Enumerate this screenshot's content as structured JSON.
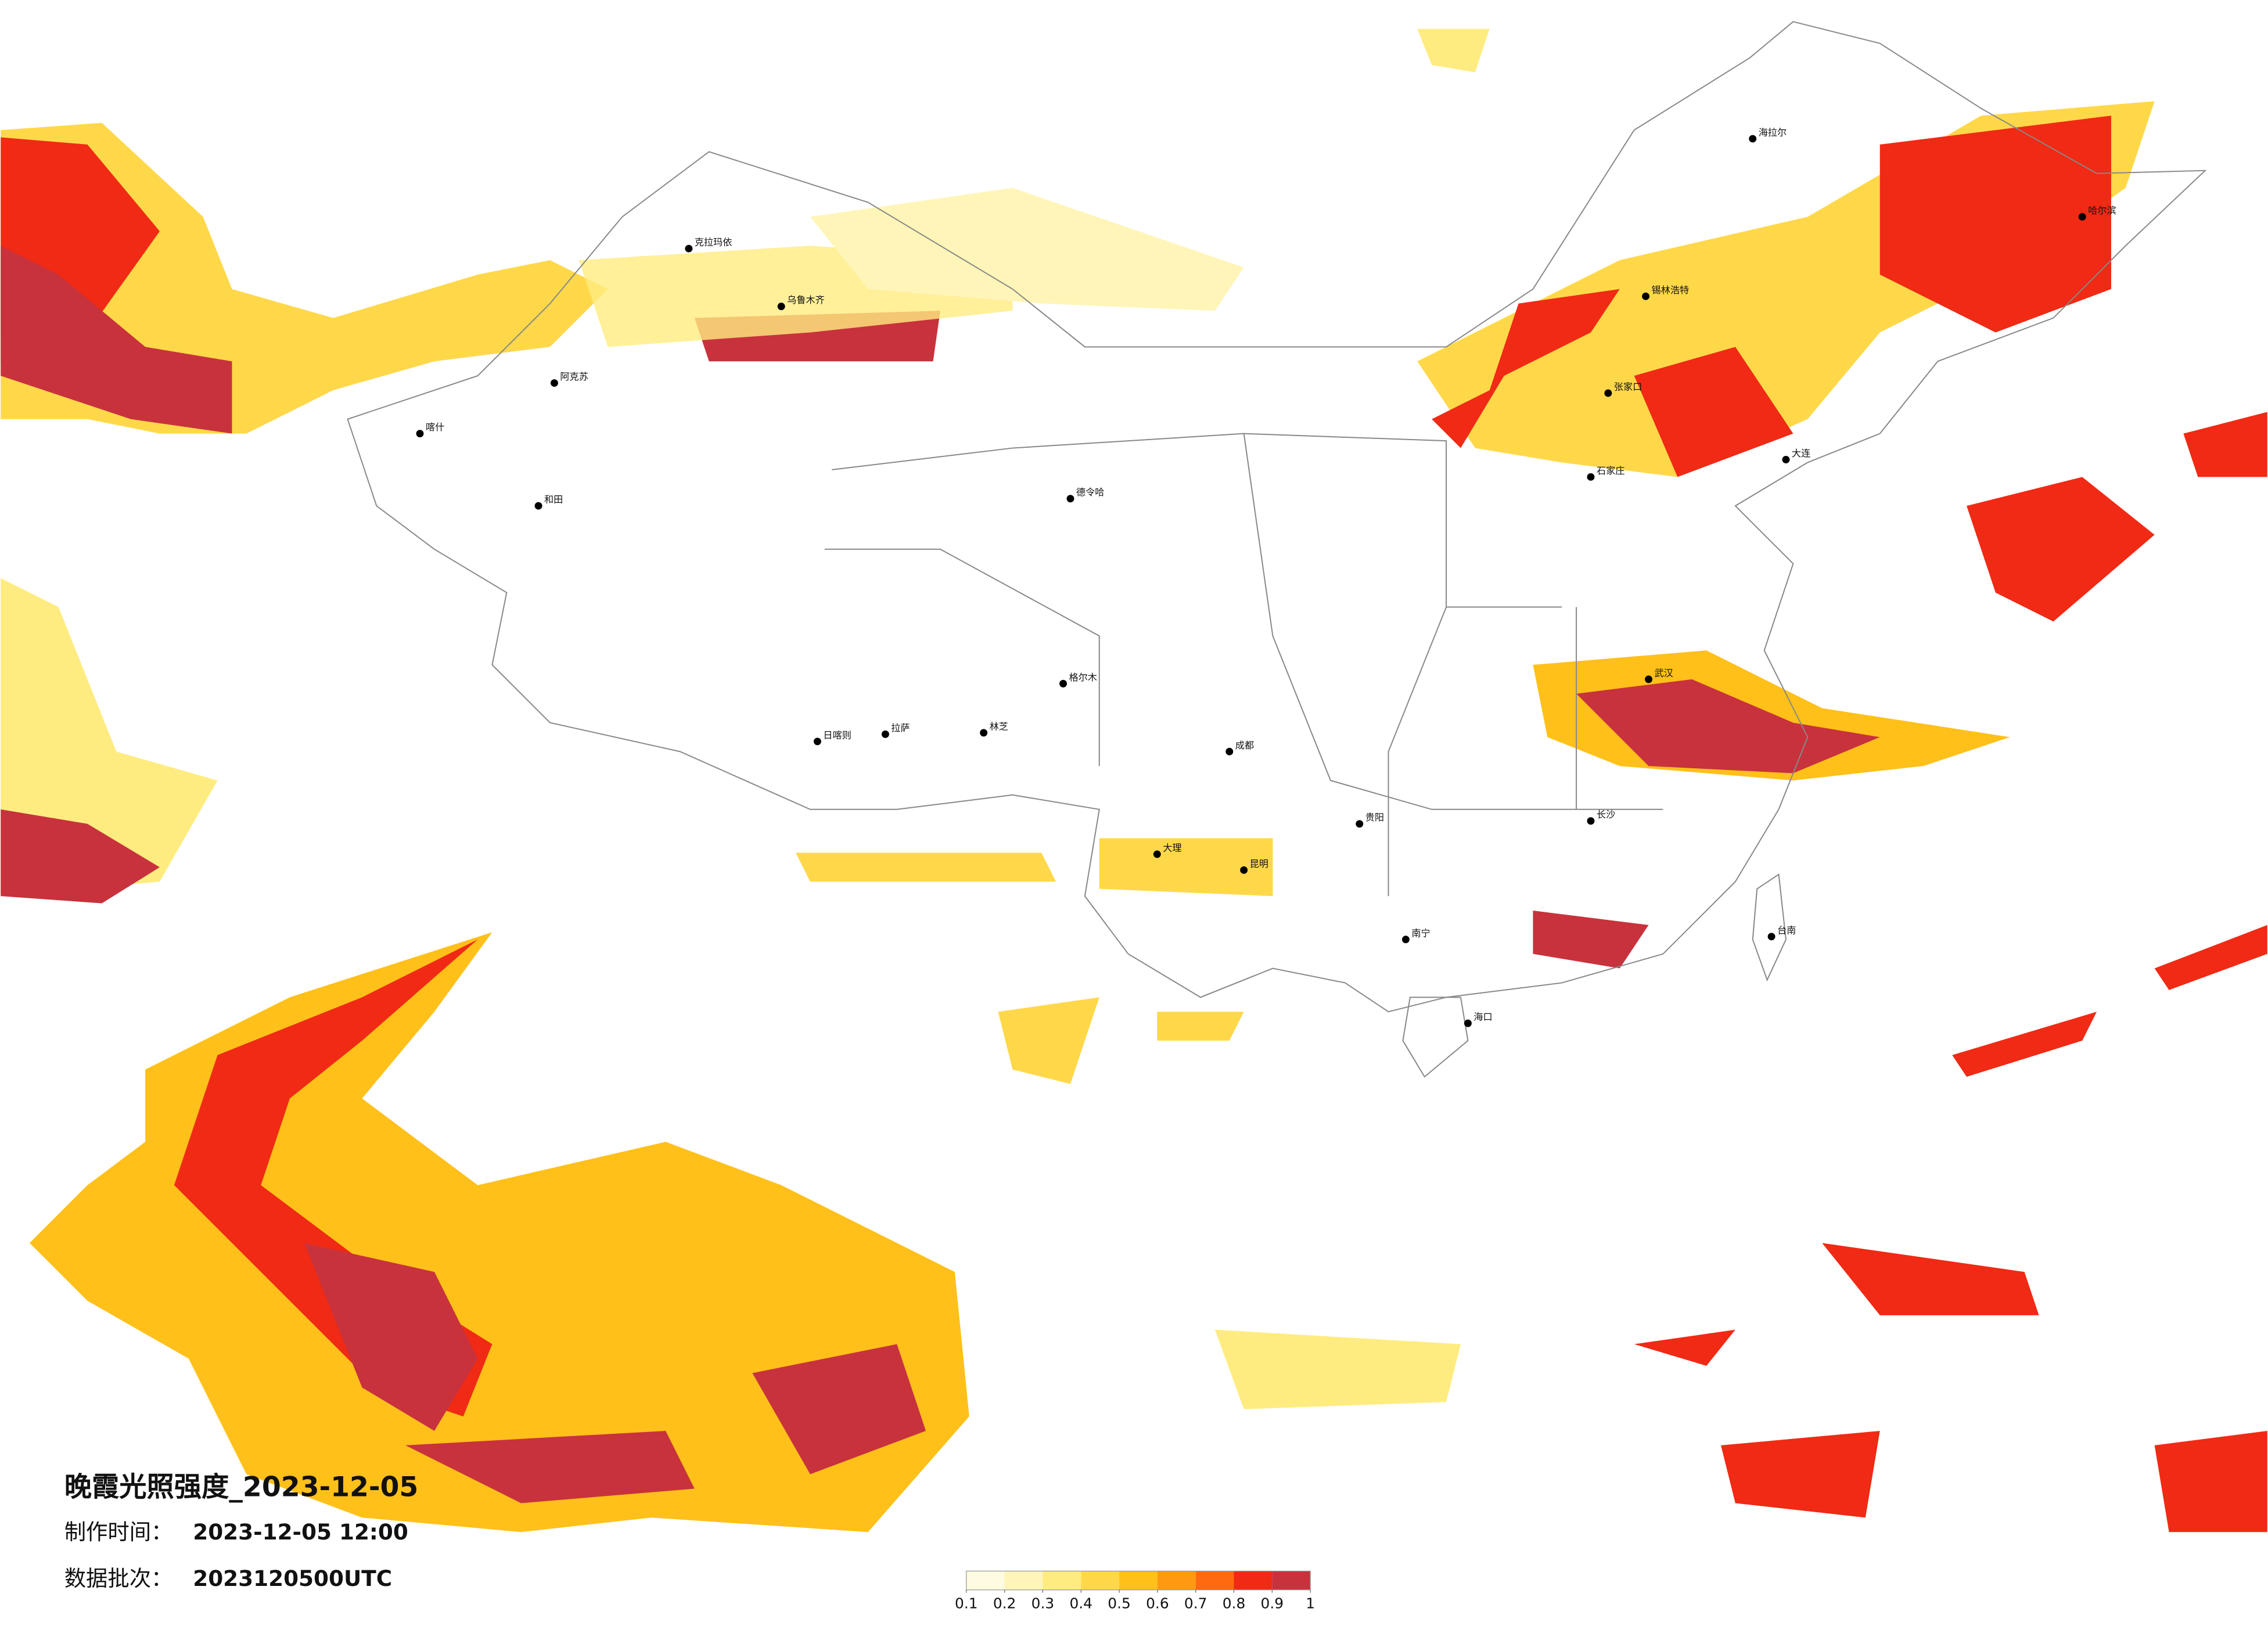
{
  "map": {
    "title": "晚霞光照强度_2023-12-05",
    "info": [
      {
        "label": "制作时间：",
        "value": "2023-12-05 12:00"
      },
      {
        "label": "数据批次：",
        "value": "2023120500UTC"
      }
    ],
    "colorbar": {
      "ticks": [
        0.1,
        0.2,
        0.3,
        0.4,
        0.5,
        0.6,
        0.7,
        0.8,
        0.9,
        1
      ],
      "colors": [
        "#fffbe0",
        "#fff5b8",
        "#ffec80",
        "#ffd84a",
        "#ffc01a",
        "#ff9a10",
        "#ff6a10",
        "#f02a14",
        "#c8323c"
      ]
    },
    "cities": [
      "克拉玛依",
      "乌鲁木齐",
      "阿克苏",
      "和田",
      "喀什",
      "德令哈",
      "格尔木",
      "日喀则",
      "拉萨",
      "林芝",
      "海拉尔",
      "锡林浩特",
      "张家口",
      "石家庄",
      "大连",
      "大理",
      "昆明",
      "南宁",
      "海口",
      "台南",
      "长沙",
      "武汉",
      "贵阳",
      "成都",
      "哈尔滨"
    ]
  }
}
